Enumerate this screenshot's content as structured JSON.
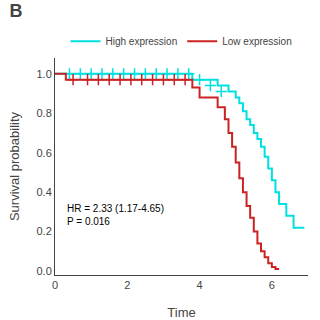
{
  "chart_data": {
    "type": "line",
    "title": "B",
    "xlabel": "Time",
    "ylabel": "Survival probability",
    "xlim": [
      0,
      7.0
    ],
    "ylim": [
      -0.02,
      1.08
    ],
    "xticks": [
      0,
      2,
      4,
      6
    ],
    "yticks": [
      0.0,
      0.2,
      0.4,
      0.6,
      0.8,
      1.0
    ],
    "grid": false,
    "legend": "top",
    "annotations": [
      "HR = 2.33 (1.17-4.65)",
      "P = 0.016"
    ],
    "series": [
      {
        "name": "High expression",
        "color": "#00E0E0",
        "line_style": "steps",
        "marker": "+",
        "x": [
          0.0,
          3.8,
          3.8,
          4.5,
          4.5,
          4.8,
          4.8,
          5.0,
          5.0,
          5.1,
          5.1,
          5.2,
          5.2,
          5.3,
          5.3,
          5.4,
          5.4,
          5.5,
          5.5,
          5.6,
          5.6,
          5.7,
          5.7,
          5.8,
          5.8,
          5.9,
          5.9,
          6.0,
          6.0,
          6.1,
          6.1,
          6.2,
          6.2,
          6.4,
          6.4,
          6.6,
          6.6,
          6.9
        ],
        "values": [
          1.0,
          1.0,
          0.97,
          0.97,
          0.94,
          0.94,
          0.91,
          0.91,
          0.88,
          0.88,
          0.85,
          0.85,
          0.81,
          0.81,
          0.77,
          0.77,
          0.74,
          0.74,
          0.7,
          0.7,
          0.67,
          0.67,
          0.63,
          0.63,
          0.58,
          0.58,
          0.52,
          0.52,
          0.46,
          0.46,
          0.4,
          0.4,
          0.34,
          0.34,
          0.28,
          0.28,
          0.22,
          0.22
        ],
        "censor_x": [
          0.4,
          0.7,
          1.0,
          1.3,
          1.6,
          1.9,
          2.2,
          2.5,
          2.8,
          3.1,
          3.4,
          3.7,
          4.0,
          4.3,
          4.6
        ],
        "censor_values": [
          1.0,
          1.0,
          1.0,
          1.0,
          1.0,
          1.0,
          1.0,
          1.0,
          1.0,
          1.0,
          1.0,
          1.0,
          0.97,
          0.94,
          0.91
        ]
      },
      {
        "name": "Low expression",
        "color": "#CC2222",
        "line_style": "steps",
        "marker": "+",
        "x": [
          0.0,
          0.3,
          0.3,
          3.8,
          3.8,
          4.0,
          4.0,
          4.5,
          4.5,
          4.7,
          4.7,
          4.8,
          4.8,
          4.9,
          4.9,
          5.0,
          5.0,
          5.1,
          5.1,
          5.2,
          5.2,
          5.3,
          5.3,
          5.4,
          5.4,
          5.5,
          5.5,
          5.6,
          5.6,
          5.7,
          5.7,
          5.8,
          5.8,
          5.9,
          5.9,
          6.0,
          6.0,
          6.1,
          6.1,
          6.2
        ],
        "values": [
          1.0,
          1.0,
          0.97,
          0.97,
          0.93,
          0.93,
          0.88,
          0.88,
          0.83,
          0.83,
          0.77,
          0.77,
          0.7,
          0.7,
          0.63,
          0.63,
          0.55,
          0.55,
          0.47,
          0.47,
          0.4,
          0.4,
          0.33,
          0.33,
          0.27,
          0.27,
          0.2,
          0.2,
          0.14,
          0.14,
          0.1,
          0.1,
          0.07,
          0.07,
          0.04,
          0.04,
          0.02,
          0.02,
          0.01,
          0.01
        ],
        "censor_x": [
          0.5,
          0.9,
          1.2,
          1.5,
          1.8,
          2.1,
          2.4,
          2.7,
          3.0,
          3.3,
          3.6
        ],
        "censor_values": [
          0.97,
          0.97,
          0.97,
          0.97,
          0.97,
          0.97,
          0.97,
          0.97,
          0.97,
          0.97,
          0.97
        ]
      }
    ]
  }
}
